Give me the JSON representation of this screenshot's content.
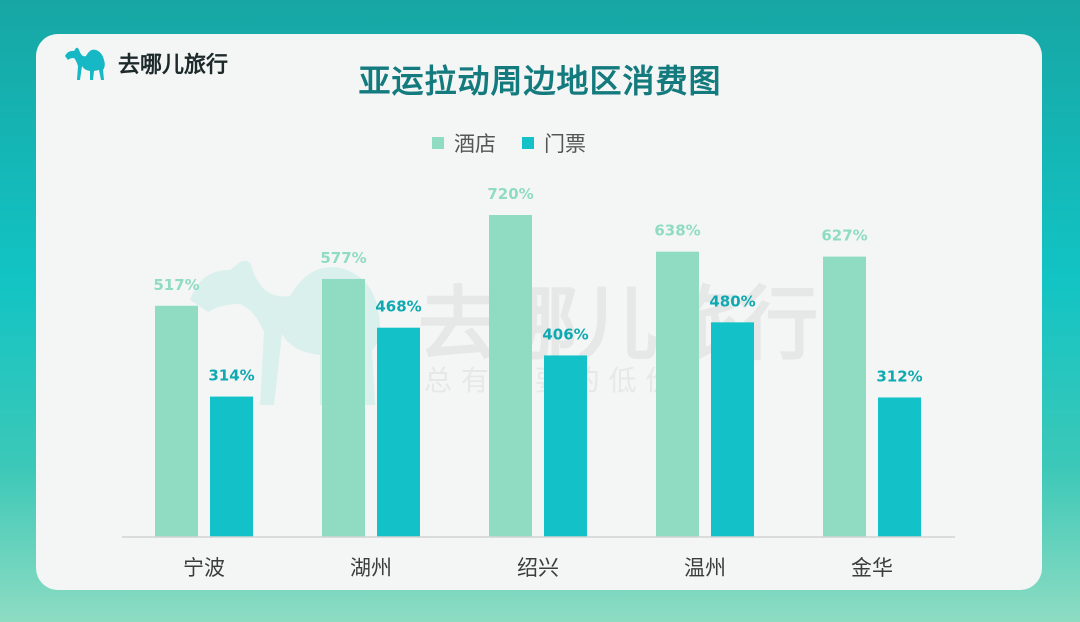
{
  "brand": {
    "name": "去哪儿旅行",
    "logo_icon": "camel-icon"
  },
  "watermark": {
    "main": "去哪儿旅行",
    "slogan": "总 有 你 要 的 低 价"
  },
  "colors": {
    "hotel": "#90dcc2",
    "ticket": "#13c2c8",
    "title": "#137a7e"
  },
  "chart_data": {
    "type": "bar",
    "title": "亚运拉动周边地区消费图",
    "categories": [
      "宁波",
      "湖州",
      "绍兴",
      "温州",
      "金华"
    ],
    "series": [
      {
        "name": "酒店",
        "values": [
          517,
          577,
          720,
          638,
          627
        ],
        "labels": [
          "517%",
          "577%",
          "720%",
          "638%",
          "627%"
        ]
      },
      {
        "name": "门票",
        "values": [
          314,
          468,
          406,
          480,
          312
        ],
        "labels": [
          "314%",
          "468%",
          "406%",
          "480%",
          "312%"
        ]
      }
    ],
    "value_unit": "%",
    "legend": "top-center",
    "grid": false
  }
}
